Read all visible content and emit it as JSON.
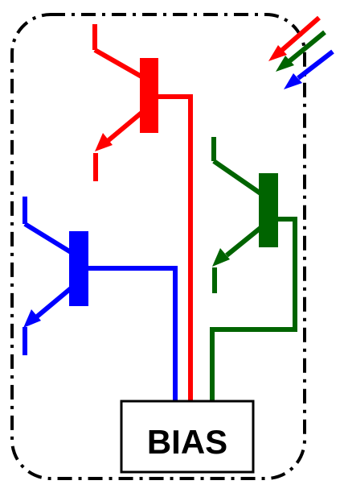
{
  "bias_box": {
    "label": "BIAS"
  },
  "colors": {
    "red": "#ff0000",
    "green": "#006400",
    "blue": "#0000ff",
    "boundary": "#000000"
  }
}
